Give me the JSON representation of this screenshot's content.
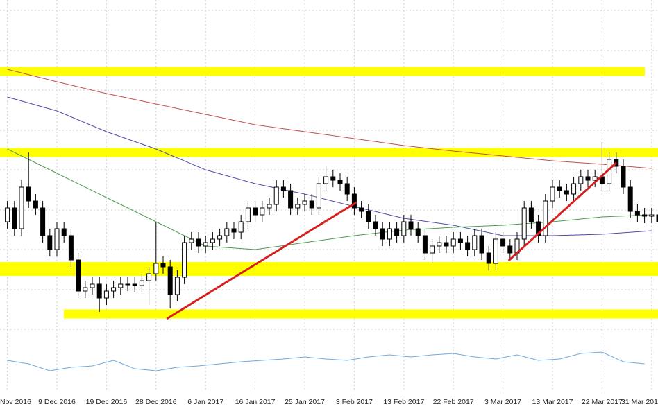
{
  "chart_data": {
    "type": "candlestick",
    "categories": [
      "Nov 2016",
      null,
      null,
      null,
      null,
      null,
      null,
      "9 Dec 2016",
      null,
      null,
      null,
      null,
      null,
      null,
      "19 Dec 2016",
      null,
      null,
      null,
      null,
      null,
      null,
      "28 Dec 2016",
      null,
      null,
      null,
      null,
      null,
      null,
      "6 Jan 2017",
      null,
      null,
      null,
      null,
      null,
      null,
      "16 Jan 2017",
      null,
      null,
      null,
      null,
      null,
      null,
      "25 Jan 2017",
      null,
      null,
      null,
      null,
      null,
      null,
      "3 Feb 2017",
      null,
      null,
      null,
      null,
      null,
      null,
      "13 Feb 2017",
      null,
      null,
      null,
      null,
      null,
      null,
      "22 Feb 2017",
      null,
      null,
      null,
      null,
      null,
      null,
      "3 Mar 2017",
      null,
      null,
      null,
      null,
      null,
      null,
      "13 Mar 2017",
      null,
      null,
      null,
      null,
      null,
      null,
      "22 Mar 2017",
      null,
      null,
      null,
      null,
      null,
      null,
      "31 Mar 201",
      null
    ],
    "open": [
      273,
      293,
      263,
      323,
      303,
      293,
      253,
      233,
      263,
      253,
      218,
      173,
      178,
      183,
      163,
      173,
      178,
      183,
      183,
      181,
      188,
      198,
      213,
      208,
      168,
      193,
      243,
      248,
      238,
      243,
      248,
      253,
      263,
      258,
      273,
      293,
      283,
      293,
      298,
      323,
      318,
      293,
      298,
      303,
      293,
      328,
      338,
      333,
      328,
      313,
      293,
      288,
      273,
      263,
      248,
      263,
      253,
      273,
      263,
      253,
      228,
      238,
      243,
      238,
      248,
      243,
      233,
      253,
      228,
      213,
      248,
      238,
      228,
      248,
      293,
      273,
      253,
      303,
      323,
      318,
      313,
      328,
      338,
      333,
      338,
      328,
      363,
      353,
      323,
      288,
      283,
      281,
      283
    ],
    "high": [
      303,
      303,
      333,
      373,
      313,
      303,
      263,
      273,
      273,
      263,
      228,
      188,
      193,
      193,
      183,
      188,
      193,
      193,
      193,
      198,
      208,
      273,
      223,
      218,
      203,
      253,
      258,
      258,
      253,
      258,
      263,
      273,
      273,
      283,
      303,
      303,
      303,
      308,
      333,
      333,
      328,
      308,
      313,
      313,
      338,
      353,
      348,
      343,
      338,
      323,
      303,
      298,
      283,
      273,
      273,
      273,
      283,
      283,
      273,
      263,
      248,
      253,
      253,
      258,
      258,
      253,
      263,
      263,
      238,
      258,
      258,
      248,
      258,
      303,
      303,
      283,
      313,
      333,
      333,
      328,
      338,
      348,
      348,
      348,
      388,
      373,
      373,
      363,
      333,
      298,
      293,
      293,
      293
    ],
    "low": [
      263,
      253,
      253,
      293,
      283,
      243,
      223,
      223,
      243,
      208,
      163,
      163,
      168,
      143,
      153,
      163,
      168,
      173,
      171,
      171,
      153,
      188,
      198,
      148,
      158,
      183,
      233,
      228,
      228,
      233,
      238,
      243,
      248,
      248,
      263,
      273,
      273,
      283,
      288,
      308,
      283,
      283,
      288,
      283,
      283,
      318,
      323,
      318,
      303,
      283,
      278,
      263,
      253,
      238,
      238,
      243,
      243,
      253,
      243,
      218,
      213,
      228,
      228,
      228,
      233,
      223,
      223,
      218,
      203,
      203,
      228,
      218,
      218,
      238,
      263,
      243,
      243,
      293,
      308,
      303,
      303,
      318,
      323,
      323,
      318,
      318,
      343,
      313,
      278,
      273,
      271,
      271,
      253
    ],
    "close": [
      293,
      263,
      323,
      303,
      293,
      253,
      233,
      263,
      253,
      218,
      173,
      178,
      183,
      163,
      173,
      178,
      183,
      183,
      181,
      188,
      198,
      213,
      208,
      168,
      193,
      243,
      248,
      238,
      243,
      248,
      253,
      263,
      258,
      273,
      293,
      283,
      293,
      298,
      323,
      318,
      293,
      298,
      303,
      293,
      328,
      338,
      333,
      328,
      313,
      293,
      288,
      273,
      263,
      248,
      263,
      253,
      273,
      263,
      253,
      228,
      238,
      243,
      238,
      248,
      243,
      233,
      253,
      228,
      213,
      248,
      238,
      228,
      248,
      293,
      273,
      253,
      303,
      323,
      318,
      313,
      328,
      338,
      333,
      338,
      328,
      363,
      353,
      323,
      288,
      283,
      281,
      283,
      273
    ],
    "up_color": "#ffffff",
    "down_color": "#000000",
    "ylim": [
      28,
      593
    ],
    "lines": [
      {
        "color": "#c0504d",
        "x": [
          0,
          7,
          14,
          21,
          28,
          35,
          42,
          49,
          56,
          63,
          70,
          77,
          84,
          91
        ],
        "values": [
          493,
          475,
          458,
          443,
          428,
          413,
          403,
          393,
          383,
          375,
          368,
          361,
          356,
          350
        ]
      },
      {
        "color": "#4b4ba8",
        "x": [
          0,
          7,
          14,
          21,
          28,
          35,
          42,
          49,
          56,
          63,
          70,
          77,
          84,
          91
        ],
        "values": [
          453,
          433,
          403,
          378,
          348,
          328,
          313,
          295,
          278,
          268,
          253,
          253,
          255,
          260
        ]
      },
      {
        "color": "#4f9a4f",
        "x": [
          0,
          7,
          14,
          21,
          28,
          35,
          42,
          49,
          56,
          63,
          70,
          77,
          84,
          91
        ],
        "values": [
          378,
          343,
          308,
          273,
          238,
          233,
          243,
          253,
          261,
          265,
          268,
          273,
          280,
          283
        ]
      },
      {
        "color": "#6fa8dc",
        "x": [
          0,
          3,
          6,
          9,
          12,
          15,
          18,
          21,
          24,
          27,
          30,
          33,
          36,
          39,
          42,
          45,
          48,
          51,
          54,
          57,
          60,
          63,
          66,
          69,
          72,
          75,
          78,
          81,
          84,
          87,
          90
        ],
        "values": [
          73,
          68,
          58,
          63,
          65,
          73,
          61,
          58,
          63,
          65,
          68,
          71,
          73,
          75,
          78,
          75,
          73,
          78,
          81,
          78,
          81,
          83,
          78,
          75,
          81,
          73,
          75,
          83,
          85,
          71,
          68
        ]
      }
    ],
    "levels": [
      {
        "color": "#ffff00",
        "value": 490,
        "x": [
          0,
          89
        ]
      },
      {
        "color": "#ffff00",
        "value": 373,
        "x": [
          0,
          92
        ]
      },
      {
        "color": "#ffff00",
        "value": 205,
        "x": [
          0,
          92
        ]
      },
      {
        "color": "#ffff00",
        "value": 140,
        "x": [
          9,
          92
        ]
      }
    ],
    "trendlines": [
      {
        "color": "#d62020",
        "x": [
          22.5,
          49.3
        ],
        "values": [
          133,
          301
        ]
      },
      {
        "color": "#d62020",
        "x": [
          70.8,
          86
        ],
        "values": [
          217,
          358
        ]
      }
    ],
    "grid": true
  }
}
